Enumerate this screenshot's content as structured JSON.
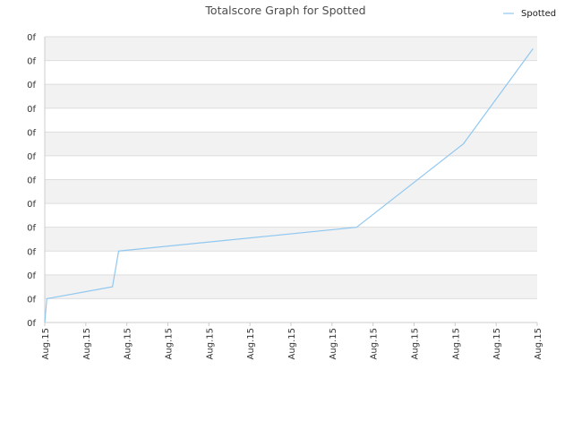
{
  "chart_data": {
    "type": "line",
    "title": "Totalscore Graph for Spotted",
    "xlabel": "",
    "ylabel": "",
    "x_tick_labels": [
      "Aug.15",
      "Aug.15",
      "Aug.15",
      "Aug.15",
      "Aug.15",
      "Aug.15",
      "Aug.15",
      "Aug.15",
      "Aug.15",
      "Aug.15",
      "Aug.15",
      "Aug.15",
      "Aug.15"
    ],
    "y_tick_labels": [
      "0f",
      "0f",
      "0f",
      "0f",
      "0f",
      "0f",
      "0f",
      "0f",
      "0f",
      "0f",
      "0f",
      "0f",
      "0f"
    ],
    "xlim": [
      0,
      12
    ],
    "ylim": [
      0,
      12
    ],
    "grid": true,
    "legend": "top-right",
    "series": [
      {
        "name": "Spotted",
        "color": "#90c8f0",
        "points": [
          {
            "x": 0.0,
            "y": 0.0
          },
          {
            "x": 0.05,
            "y": 1.0
          },
          {
            "x": 1.65,
            "y": 1.5
          },
          {
            "x": 1.8,
            "y": 3.0
          },
          {
            "x": 7.6,
            "y": 4.0
          },
          {
            "x": 10.2,
            "y": 7.5
          },
          {
            "x": 11.9,
            "y": 11.5
          }
        ]
      }
    ]
  }
}
